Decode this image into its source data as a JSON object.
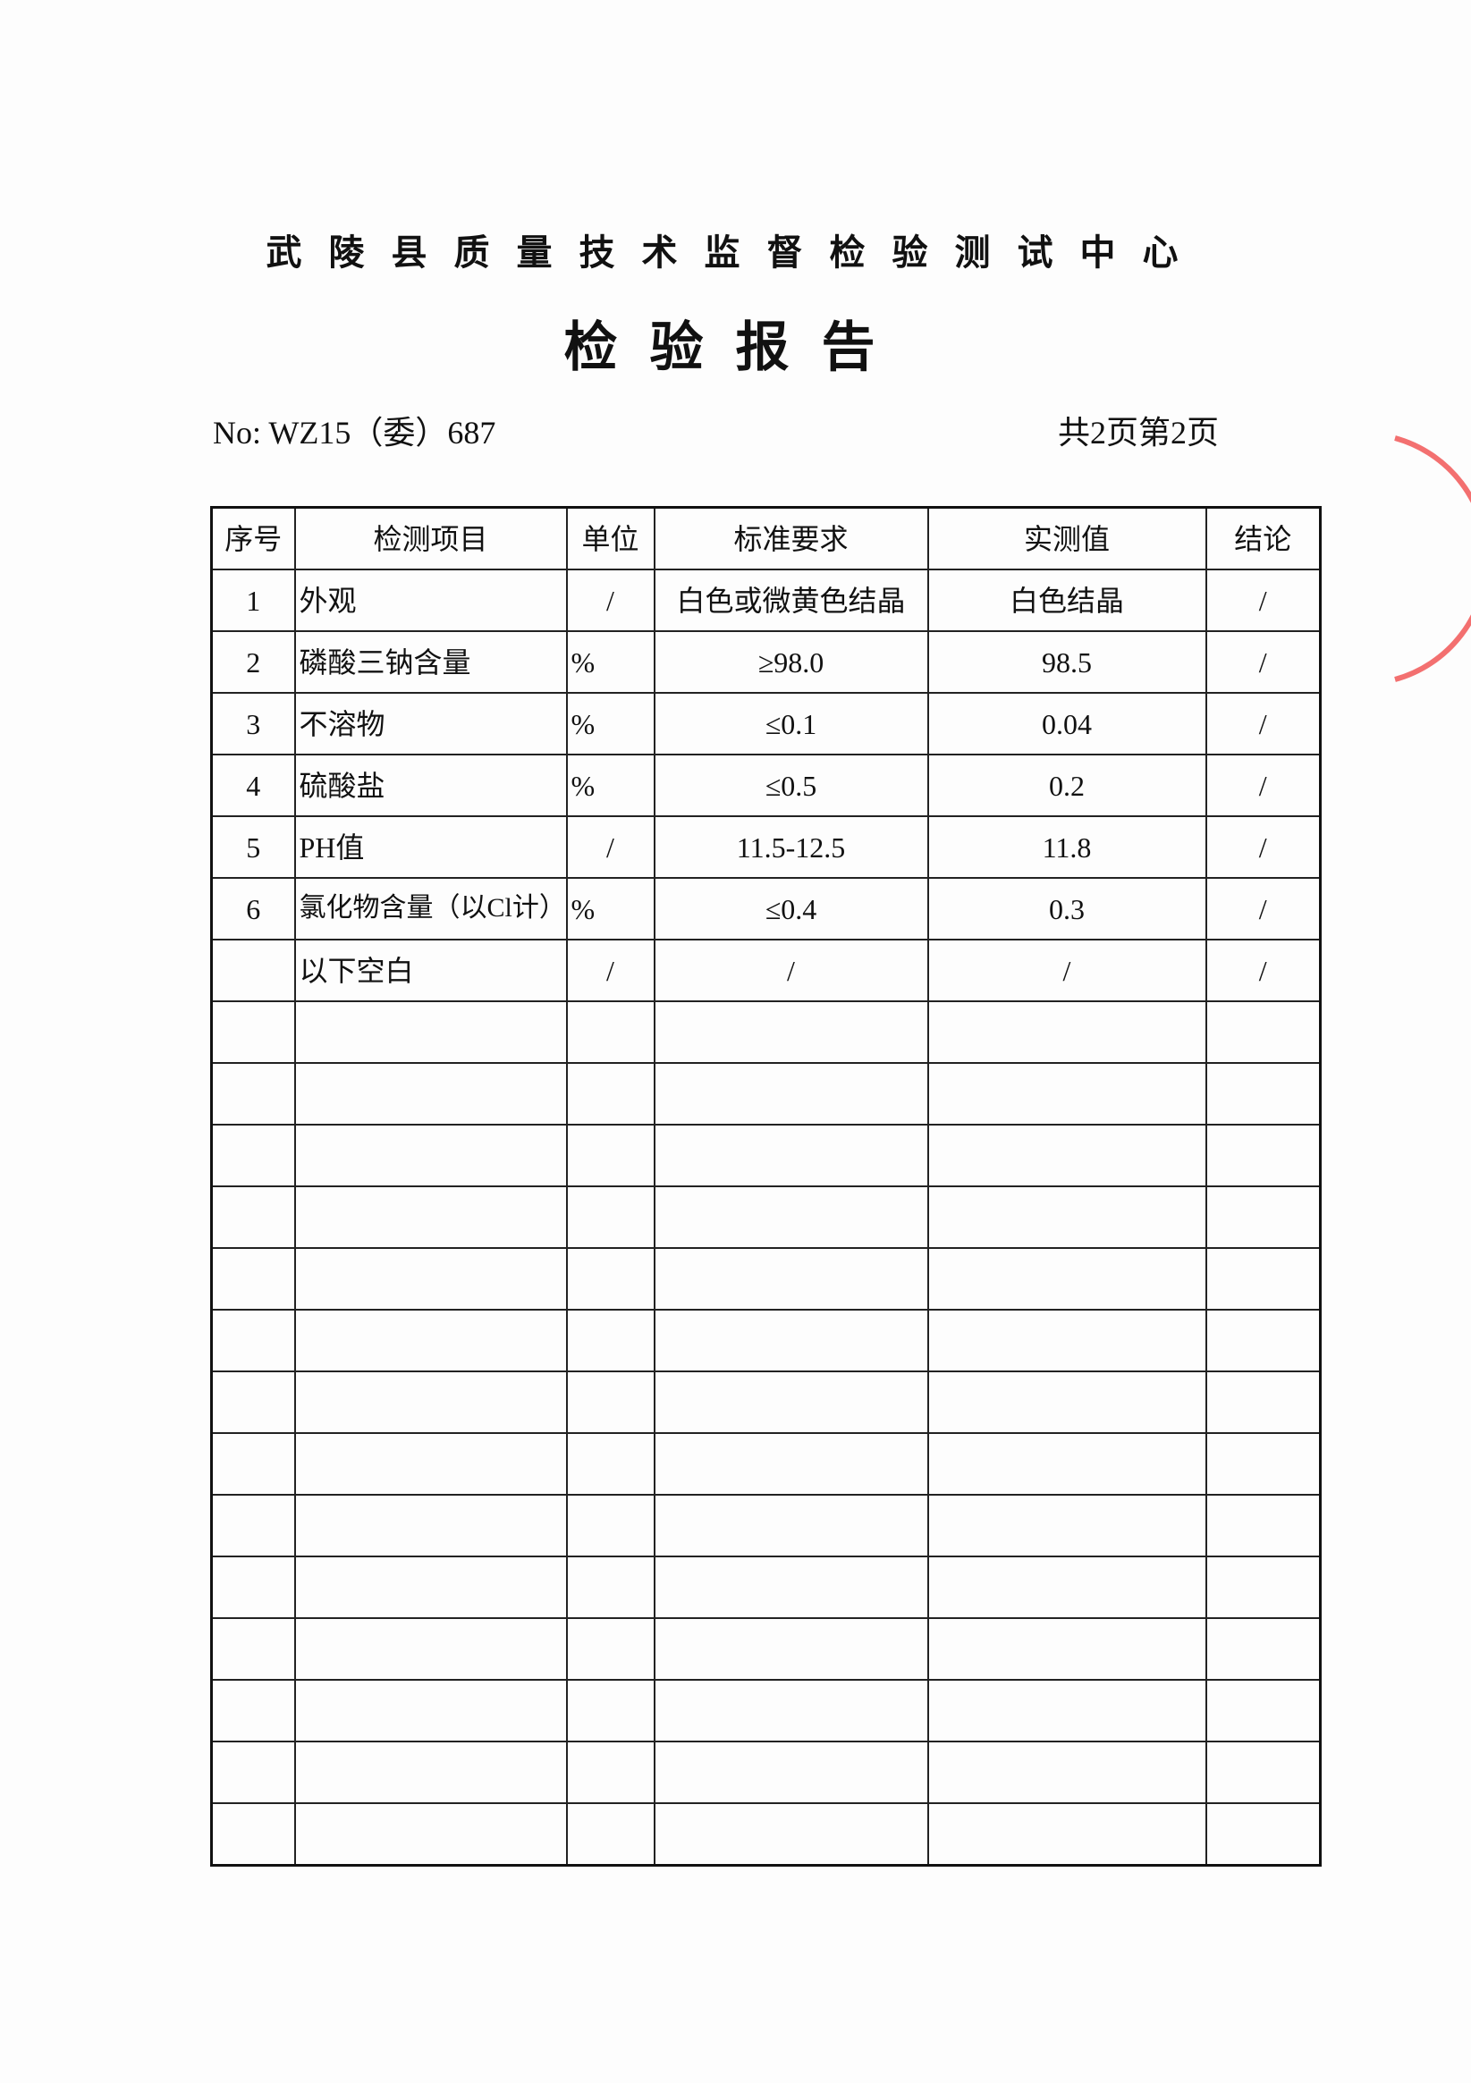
{
  "header": {
    "organization": "武陵县质量技术监督检验测试中心",
    "title": "检验报告",
    "number": "No: WZ15（委）687",
    "page_info": "共2页第2页"
  },
  "table": {
    "columns": [
      "序号",
      "检测项目",
      "单位",
      "标准要求",
      "实测值",
      "结论"
    ],
    "rows": [
      {
        "no": "1",
        "item": "外观",
        "unit": "/",
        "standard": "白色或微黄色结晶",
        "measured": "白色结晶",
        "conclusion": "/"
      },
      {
        "no": "2",
        "item": "磷酸三钠含量",
        "unit": "%",
        "standard": "≥98.0",
        "measured": "98.5",
        "conclusion": "/"
      },
      {
        "no": "3",
        "item": "不溶物",
        "unit": "%",
        "standard": "≤0.1",
        "measured": "0.04",
        "conclusion": "/"
      },
      {
        "no": "4",
        "item": "硫酸盐",
        "unit": "%",
        "standard": "≤0.5",
        "measured": "0.2",
        "conclusion": "/"
      },
      {
        "no": "5",
        "item": "PH值",
        "unit": "/",
        "standard": "11.5-12.5",
        "measured": "11.8",
        "conclusion": "/"
      },
      {
        "no": "6",
        "item": "氯化物含量（以Cl计）",
        "unit": "%",
        "standard": "≤0.4",
        "measured": "0.3",
        "conclusion": "/"
      },
      {
        "item": "以下空白",
        "unit": "/",
        "standard": "/",
        "measured": "/",
        "conclusion": "/"
      }
    ]
  }
}
